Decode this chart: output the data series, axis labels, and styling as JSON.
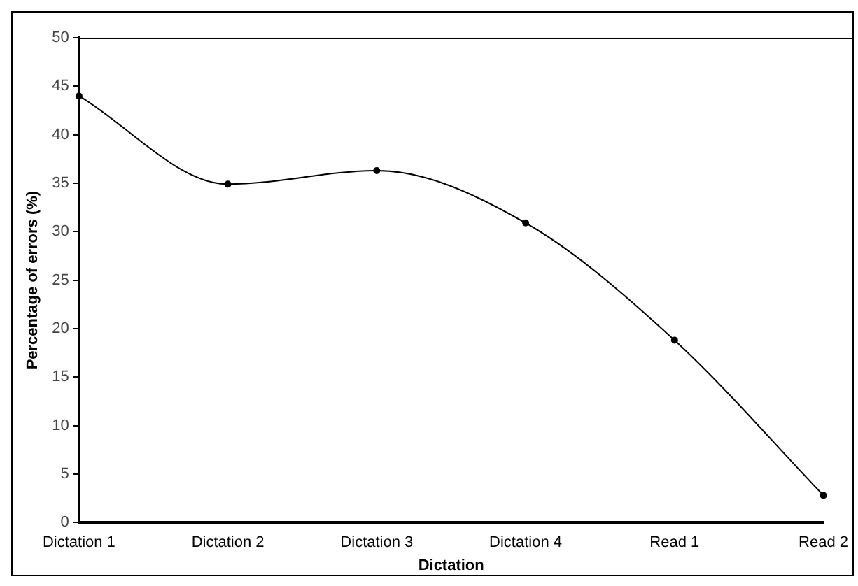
{
  "chart_data": {
    "type": "line",
    "xlabel": "Dictation",
    "ylabel": "Percentage of errors (%)",
    "categories": [
      "Dictation 1",
      "Dictation 2",
      "Dictation 3",
      "Dictation 4",
      "Read 1",
      "Read 2"
    ],
    "values": [
      44,
      34.9,
      36.3,
      30.9,
      18.8,
      2.8
    ],
    "color": "#000000",
    "ylim": [
      0,
      50
    ],
    "yticks": [
      0,
      5,
      10,
      15,
      20,
      25,
      30,
      35,
      40,
      45,
      50
    ],
    "grid": false,
    "legend": false,
    "marker": "circle",
    "line_style": "solid"
  }
}
